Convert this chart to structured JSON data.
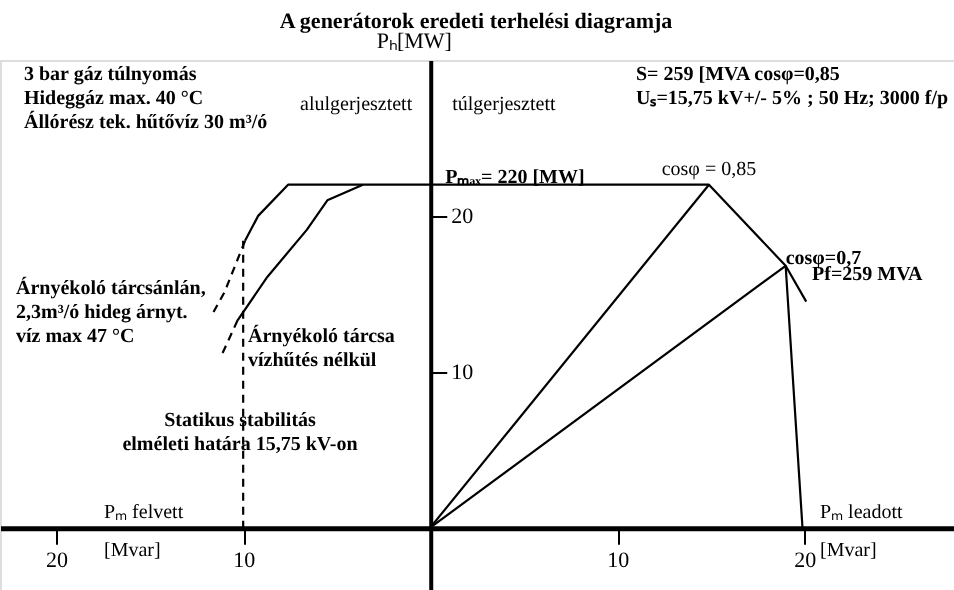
{
  "chart_data": {
    "type": "line",
    "title": "A generátorok eredeti terhelési diagramja",
    "ylabel": "Pₕ[MW]",
    "xlabel": "Pₘ leadott\n[Mvar]",
    "xlim": [
      -23,
      28
    ],
    "ylim": [
      -4,
      30
    ],
    "xticks": [
      {
        "value": -20,
        "label": "20"
      },
      {
        "value": -10,
        "label": "10"
      },
      10,
      20
    ],
    "yticks": [
      10,
      20
    ],
    "grid": false,
    "marker": "none",
    "series": [
      {
        "color": "#000000",
        "line_style": "solid",
        "x": [
          -9.9,
          -9.2,
          -7.6,
          14.9,
          19.0,
          19.9
        ],
        "values": [
          18.4,
          20,
          22,
          22,
          16.8,
          0
        ]
      },
      {
        "color": "#000000",
        "line_style": "solid",
        "x": [
          -3.6,
          -5.5,
          -6.6,
          -8.7,
          -10.3
        ],
        "values": [
          22,
          21,
          19.1,
          16.1,
          13.3
        ]
      },
      {
        "color": "#000000",
        "line_style": "dashed",
        "x": [
          -10,
          -10
        ],
        "values": [
          18.4,
          0
        ]
      },
      {
        "color": "#000000",
        "line_style": "dashed",
        "x": [
          -9.9,
          -11.0,
          -11.6
        ],
        "values": [
          18.4,
          15.1,
          13.8
        ]
      },
      {
        "color": "#000000",
        "line_style": "dashed",
        "x": [
          -10.3,
          -11.1
        ],
        "values": [
          13.3,
          11.2
        ]
      },
      {
        "color": "#000000",
        "line_style": "solid",
        "x": [
          0,
          14.9
        ],
        "values": [
          0,
          22
        ]
      },
      {
        "color": "#000000",
        "line_style": "solid",
        "x": [
          0,
          19.0
        ],
        "values": [
          0,
          16.8
        ]
      },
      {
        "color": "#000000",
        "line_style": "solid",
        "x": [
          19.0,
          20.1
        ],
        "values": [
          16.8,
          14.5
        ]
      }
    ],
    "annotations": [
      "3 bar gáz túlnyomás\nHideggáz max. 40 °C\nÁllórész tek. hűtővíz 30 m³/ó",
      "alulgerjesztett",
      "túlgerjesztett",
      "S= 259 [MVA cosφ=0,85\nUₛ=15,75 kV+/- 5% ; 50 Hz; 3000 f/p",
      "Árnyékoló tárcsánlán,\n2,3m³/ó hideg árnyt.\nvíz max 47 °C",
      "Árnyékoló tárcsa\nvízhűtés nélkül",
      "Statikus stabilitás\nelméleti határa 15,75 kV-on",
      "Pₘ felvett\n[Mvar]",
      "Pf=259 MVA",
      {
        "text": "Pₘₐₓ= 220 [MW]",
        "x": 0.8,
        "y": 22
      },
      {
        "text": "cosφ = 0,85",
        "x": 14.9,
        "y": 22
      },
      {
        "text": "cosφ=0,7",
        "x": 19.0,
        "y": 16.8
      }
    ]
  }
}
